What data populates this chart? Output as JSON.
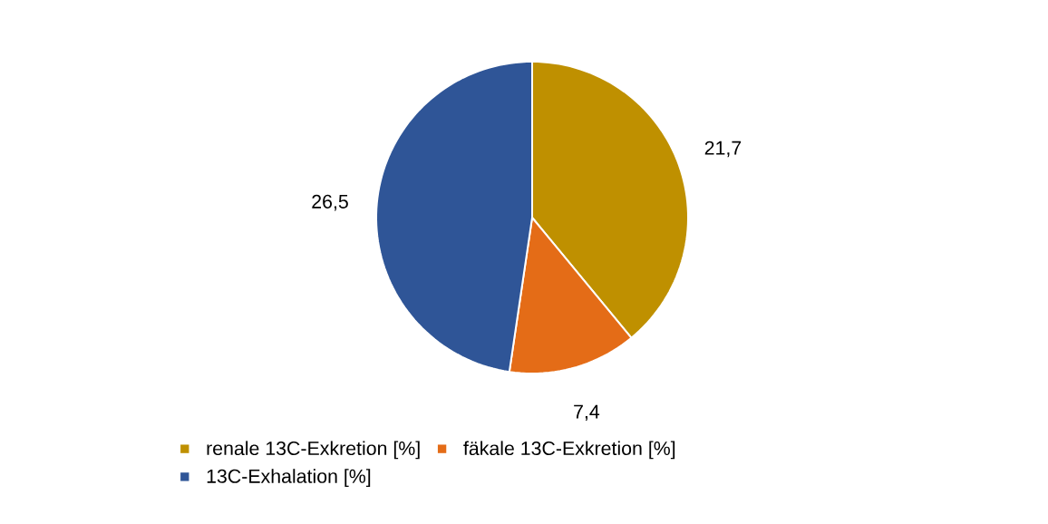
{
  "chart_data": {
    "type": "pie",
    "categories": [
      "renale 13C-Exkretion [%]",
      "fäkale 13C-Exkretion  [%]",
      "13C-Exhalation [%]"
    ],
    "values": [
      21.7,
      7.4,
      26.5
    ],
    "value_labels": [
      "21,7",
      "7,4",
      "26,5"
    ],
    "colors": [
      "#bf9000",
      "#e46c17",
      "#2f5597"
    ],
    "legend": "bottom"
  }
}
